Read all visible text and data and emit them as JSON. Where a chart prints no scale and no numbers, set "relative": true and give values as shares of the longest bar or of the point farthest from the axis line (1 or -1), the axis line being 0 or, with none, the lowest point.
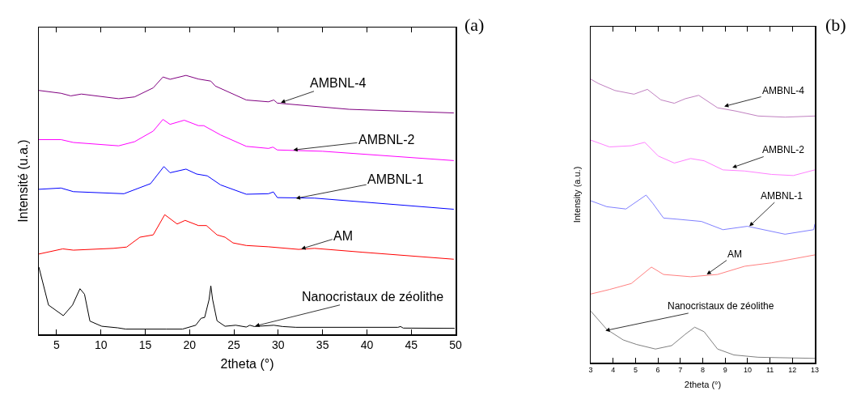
{
  "chart_data": [
    {
      "type": "line",
      "relative": true,
      "xlabel": "2theta (°)",
      "ylabel": "Intensité (u.a.)",
      "xlim": [
        3,
        50
      ],
      "xticks": [
        5,
        10,
        15,
        20,
        25,
        30,
        35,
        40,
        45,
        50
      ],
      "marker": "none",
      "line_style": "solid",
      "tick_labels": "x",
      "series": [
        {
          "color": "#000000",
          "x": [
            3.0,
            4.09,
            5.76,
            6.8,
            7.64,
            8.15,
            8.76,
            10.1,
            11.9,
            12.8,
            17.4,
            19.2,
            20.7,
            21.3,
            21.7,
            22.2,
            22.4,
            22.6,
            23.1,
            24.0,
            25.2,
            26.4,
            26.8,
            27.3,
            29.5,
            30.5,
            32,
            43.5,
            43.8,
            44.1,
            49.9
          ],
          "values": [
            0.26,
            0.113,
            0.072,
            0.113,
            0.176,
            0.155,
            0.051,
            0.031,
            0.025,
            0.02,
            0.02,
            0.02,
            0.035,
            0.062,
            0.065,
            0.134,
            0.187,
            0.134,
            0.052,
            0.031,
            0.035,
            0.028,
            0.035,
            0.03,
            0.035,
            0.03,
            0.027,
            0.027,
            0.03,
            0.024,
            0.023
          ]
        },
        {
          "color": "#ff0000",
          "x": [
            3.0,
            5.7,
            6.9,
            11.4,
            12.9,
            14.4,
            15.9,
            17.2,
            18.6,
            19.5,
            21.0,
            21.9,
            23.1,
            24.0,
            24.9,
            26.4,
            28.9,
            32.3,
            34.1,
            39.5,
            49.8
          ],
          "values": [
            0.31,
            0.33,
            0.325,
            0.332,
            0.337,
            0.375,
            0.384,
            0.462,
            0.426,
            0.44,
            0.42,
            0.42,
            0.384,
            0.375,
            0.353,
            0.343,
            0.338,
            0.328,
            0.332,
            0.317,
            0.29
          ]
        },
        {
          "color": "#0000ff",
          "x": [
            3.0,
            5.5,
            6.9,
            12.6,
            15.6,
            17.1,
            17.8,
            19.6,
            20.8,
            22.0,
            23.5,
            26.4,
            28.9,
            29.45,
            29.9,
            34.1,
            49.8
          ],
          "values": [
            0.56,
            0.565,
            0.551,
            0.543,
            0.582,
            0.648,
            0.624,
            0.638,
            0.619,
            0.612,
            0.577,
            0.541,
            0.543,
            0.55,
            0.528,
            0.526,
            0.483
          ]
        },
        {
          "color": "#ff00ff",
          "x": [
            3.0,
            5.5,
            6.9,
            12.0,
            13.8,
            15.9,
            17.0,
            17.8,
            19.4,
            21.0,
            21.6,
            23.5,
            26.4,
            28.9,
            29.4,
            29.9,
            35,
            49.8
          ],
          "values": [
            0.752,
            0.752,
            0.741,
            0.728,
            0.744,
            0.785,
            0.83,
            0.811,
            0.827,
            0.806,
            0.806,
            0.77,
            0.726,
            0.718,
            0.723,
            0.712,
            0.707,
            0.671
          ]
        },
        {
          "color": "#800080",
          "x": [
            3.0,
            5.5,
            6.6,
            7.8,
            12.0,
            13.8,
            15.9,
            17.0,
            17.8,
            19.6,
            21.0,
            22.4,
            22.9,
            26.4,
            28.9,
            29.5,
            29.9,
            38.0,
            49.8
          ],
          "values": [
            0.942,
            0.931,
            0.921,
            0.928,
            0.91,
            0.917,
            0.952,
            0.994,
            0.985,
            1.0,
            0.986,
            0.978,
            0.959,
            0.905,
            0.898,
            0.905,
            0.893,
            0.869,
            0.855
          ]
        }
      ],
      "annotations": [
        {
          "text": "AMBNL-4",
          "x": 30.3,
          "y": 0.895
        },
        {
          "text": "AMBNL-2",
          "x": 31.7,
          "y": 0.712
        },
        {
          "text": "AMBNL-1",
          "x": 32.0,
          "y": 0.525
        },
        {
          "text": "AM",
          "x": 32.6,
          "y": 0.33
        },
        {
          "text": "Nanocristaux de zéolithe",
          "x": 27.4,
          "y": 0.032
        },
        "(a)"
      ]
    },
    {
      "type": "line",
      "relative": true,
      "xlabel": "2theta (°)",
      "ylabel": "Intensity (a.u.)",
      "xlim": [
        3,
        13
      ],
      "xticks": [
        3,
        4,
        5,
        6,
        7,
        8,
        9,
        10,
        11,
        12,
        13
      ],
      "marker": "none",
      "line_style": "solid",
      "tick_labels": "x",
      "series": [
        {
          "color": "#808080",
          "x": [
            3.0,
            3.72,
            4.45,
            5.05,
            5.89,
            6.61,
            7.22,
            7.64,
            8.06,
            8.66,
            9.39,
            10.47,
            13.0
          ],
          "values": [
            0.182,
            0.117,
            0.08,
            0.064,
            0.048,
            0.06,
            0.1,
            0.125,
            0.109,
            0.048,
            0.027,
            0.019,
            0.015
          ]
        },
        {
          "color": "#ff8080",
          "x": [
            3.0,
            3.84,
            4.81,
            5.71,
            6.25,
            7.46,
            8.66,
            9.87,
            11.07,
            13.0
          ],
          "values": [
            0.242,
            0.258,
            0.279,
            0.337,
            0.311,
            0.303,
            0.311,
            0.34,
            0.352,
            0.38
          ]
        },
        {
          "color": "#8080ff",
          "x": [
            3.0,
            3.72,
            4.57,
            5.47,
            5.77,
            6.25,
            6.86,
            7.94,
            8.9,
            9.99,
            11.67,
            12.95,
            13.0
          ],
          "values": [
            0.571,
            0.55,
            0.542,
            0.591,
            0.562,
            0.51,
            0.506,
            0.498,
            0.469,
            0.481,
            0.453,
            0.469,
            0.489
          ]
        },
        {
          "color": "#ff80ff",
          "x": [
            3.0,
            3.84,
            4.81,
            5.41,
            6.01,
            6.73,
            7.46,
            8.06,
            8.9,
            9.87,
            11.07,
            12.04,
            13.0
          ],
          "values": [
            0.785,
            0.761,
            0.765,
            0.777,
            0.729,
            0.704,
            0.72,
            0.712,
            0.68,
            0.676,
            0.664,
            0.66,
            0.68
          ]
        },
        {
          "color": "#c080c0",
          "x": [
            3.0,
            3.36,
            4.08,
            4.93,
            5.53,
            6.13,
            6.73,
            7.22,
            7.82,
            8.66,
            9.5,
            10.47,
            11.67,
            13.0
          ],
          "values": [
            1.0,
            0.984,
            0.96,
            0.947,
            0.964,
            0.927,
            0.915,
            0.931,
            0.943,
            0.899,
            0.887,
            0.87,
            0.866,
            0.87
          ]
        }
      ],
      "annotations": [
        {
          "text": "AMBNL-4",
          "x": 8.96,
          "y": 0.904
        },
        {
          "text": "AMBNL-2",
          "x": 9.32,
          "y": 0.688
        },
        {
          "text": "AMBNL-1",
          "x": 10.08,
          "y": 0.481
        },
        {
          "text": "AM",
          "x": 8.18,
          "y": 0.311
        },
        {
          "text": "Nanocristaux de zéolithe",
          "x": 3.66,
          "y": 0.113
        },
        "(b)"
      ]
    }
  ]
}
